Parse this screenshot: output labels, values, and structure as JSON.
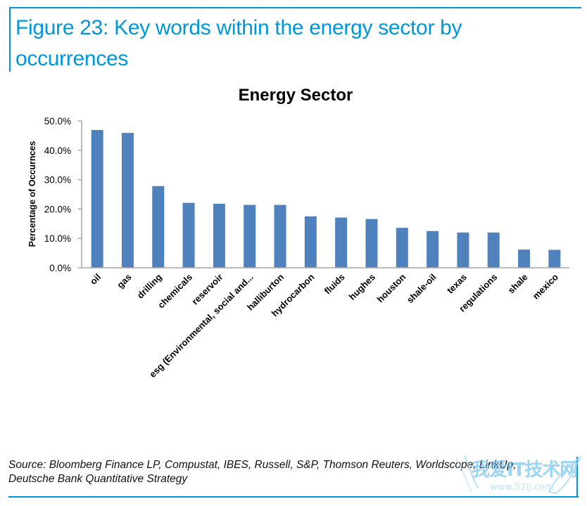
{
  "figure": {
    "title": "Figure 23: Key words within the energy sector by occurrences",
    "source": "Source: Bloomberg Finance LP, Compustat, IBES, Russell, S&P, Thomson Reuters, Worldscope, LinkUp, Deutsche Bank Quantitative Strategy",
    "accent_color": "#0096db"
  },
  "watermark": {
    "text": "我爱IT技术网",
    "url": "www.52ij.com"
  },
  "chart_data": {
    "type": "bar",
    "title": "Energy Sector",
    "xlabel": "",
    "ylabel": "Percentage of Occurnces",
    "ylim": [
      0,
      50
    ],
    "yticks": [
      0,
      10,
      20,
      30,
      40,
      50
    ],
    "ytick_labels": [
      "0.0%",
      "10.0%",
      "20.0%",
      "30.0%",
      "40.0%",
      "50.0%"
    ],
    "grid": false,
    "legend": "none",
    "bar_color": "#4f81bd",
    "categories": [
      "oil",
      "gas",
      "drilling",
      "chemicals",
      "reservoir",
      "esg (Environmental, social and...",
      "halliburton",
      "hydrocarbon",
      "fluids",
      "hughes",
      "houston",
      "shale-oil",
      "texas",
      "regulations",
      "shale",
      "mexico"
    ],
    "values": [
      46.9,
      45.9,
      27.8,
      22.1,
      21.8,
      21.4,
      21.4,
      17.5,
      17.1,
      16.6,
      13.6,
      12.5,
      12.0,
      12.0,
      6.2,
      6.1
    ],
    "unit": "%"
  }
}
